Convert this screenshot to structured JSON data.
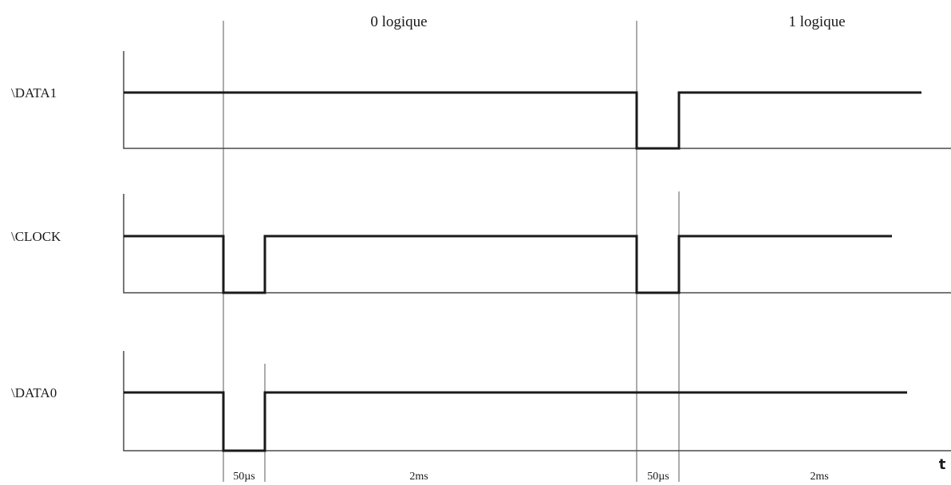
{
  "sections": [
    {
      "id": "zero",
      "label": "0 logique"
    },
    {
      "id": "one",
      "label": "1 logique"
    }
  ],
  "signals": [
    {
      "id": "data1",
      "label": "\\DATA1"
    },
    {
      "id": "clock",
      "label": "\\CLOCK"
    },
    {
      "id": "data0",
      "label": "\\DATA0"
    }
  ],
  "durations": [
    {
      "id": "pulse-1",
      "label": "50µs"
    },
    {
      "id": "period-1",
      "label": "2ms"
    },
    {
      "id": "pulse-2",
      "label": "50µs"
    },
    {
      "id": "period-2",
      "label": "2ms"
    }
  ],
  "time_axis": {
    "label": "t"
  }
}
